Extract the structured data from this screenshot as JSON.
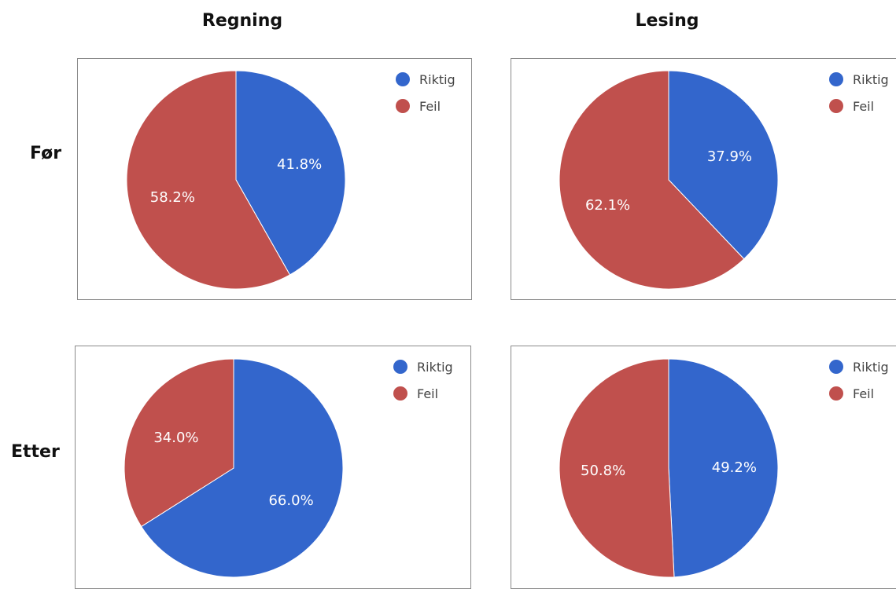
{
  "columns": [
    "Regning",
    "Lesing"
  ],
  "rows": [
    "Før",
    "Etter"
  ],
  "legend": [
    "Riktig",
    "Feil"
  ],
  "colors": {
    "Riktig": "#3366cc",
    "Feil": "#c0504d"
  },
  "chart_data": [
    {
      "type": "pie",
      "subject": "Regning",
      "period": "Før",
      "slices": [
        {
          "label": "Riktig",
          "value": 41.8,
          "text": "41.8%"
        },
        {
          "label": "Feil",
          "value": 58.2,
          "text": "58.2%"
        }
      ]
    },
    {
      "type": "pie",
      "subject": "Lesing",
      "period": "Før",
      "slices": [
        {
          "label": "Riktig",
          "value": 37.9,
          "text": "37.9%"
        },
        {
          "label": "Feil",
          "value": 62.1,
          "text": "62.1%"
        }
      ]
    },
    {
      "type": "pie",
      "subject": "Regning",
      "period": "Etter",
      "slices": [
        {
          "label": "Riktig",
          "value": 66.0,
          "text": "66.0%"
        },
        {
          "label": "Feil",
          "value": 34.0,
          "text": "34.0%"
        }
      ]
    },
    {
      "type": "pie",
      "subject": "Lesing",
      "period": "Etter",
      "slices": [
        {
          "label": "Riktig",
          "value": 49.2,
          "text": "49.2%"
        },
        {
          "label": "Feil",
          "value": 50.8,
          "text": "50.8%"
        }
      ]
    }
  ]
}
